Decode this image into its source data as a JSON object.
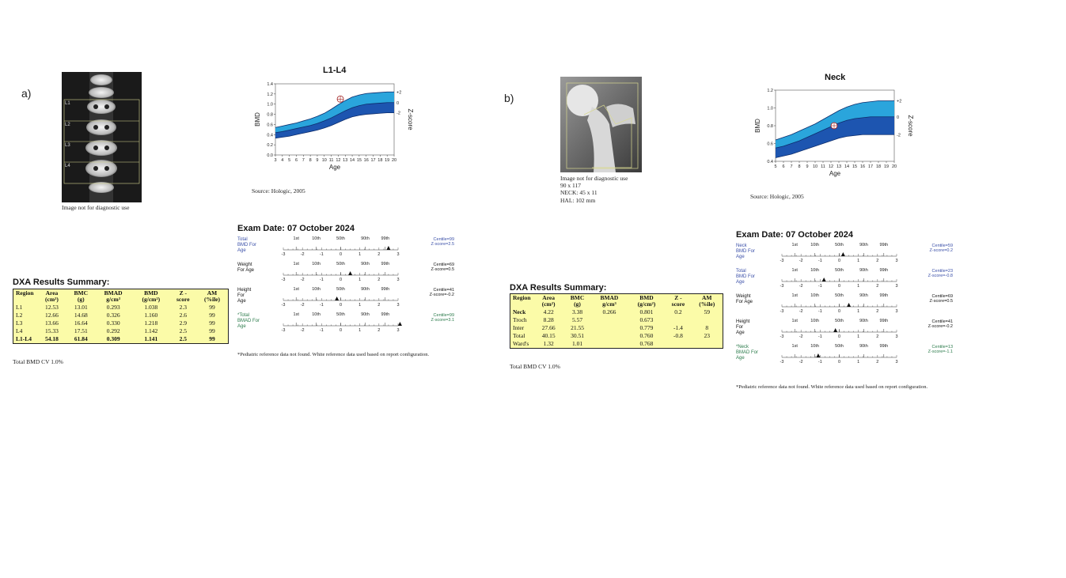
{
  "panel_a": {
    "label": "a)",
    "image_caption": "Image not for diagnostic use",
    "vertebra_labels": [
      "L1",
      "L2",
      "L3",
      "L4"
    ],
    "chart_title": "L1-L4",
    "source": "Source: Hologic, 2005",
    "exam_date": "Exam Date: 07 October 2024",
    "summary_title": "DXA Results Summary:",
    "table_headers": [
      "Region",
      "Area (cm²)",
      "BMC (g)",
      "BMAD g/cm³",
      "BMD (g/cm²)",
      "Z - score",
      "AM (%ile)"
    ],
    "table_rows": [
      [
        "L1",
        "12.53",
        "13.01",
        "0.293",
        "1.038",
        "2.3",
        "99"
      ],
      [
        "L2",
        "12.66",
        "14.68",
        "0.326",
        "1.160",
        "2.6",
        "99"
      ],
      [
        "L3",
        "13.66",
        "16.64",
        "0.330",
        "1.218",
        "2.9",
        "99"
      ],
      [
        "L4",
        "15.33",
        "17.51",
        "0.292",
        "1.142",
        "2.5",
        "99"
      ],
      [
        "L1-L4",
        "54.18",
        "61.84",
        "0.309",
        "1.141",
        "2.5",
        "99"
      ]
    ],
    "footer": "Total BMD CV 1.0%",
    "footnote": "*Pediatric reference data not found. White reference data used based on report configuration.",
    "scales": [
      {
        "label": "Total\nBMD For\nAge",
        "centile": "Centile=99",
        "zscore": "Z-score=2.5",
        "z": 2.5,
        "color": "#3a4fa8"
      },
      {
        "label": "Weight\nFor Age",
        "centile": "Centile=69",
        "zscore": "Z-score=0.5",
        "z": 0.5,
        "color": "#111"
      },
      {
        "label": "Height\nFor\nAge",
        "centile": "Centile=41",
        "zscore": "Z-score=-0.2",
        "z": -0.2,
        "color": "#111"
      },
      {
        "label": "*Total\nBMAD For\nAge",
        "centile": "Centile=99",
        "zscore": "Z-score=3.1",
        "z": 3.1,
        "color": "#2a7a4a"
      }
    ]
  },
  "panel_b": {
    "label": "b)",
    "image_caption": "Image not for diagnostic use",
    "image_info": [
      "90 x 117",
      "NECK: 45 x 11",
      "HAL: 102 mm"
    ],
    "chart_title": "Neck",
    "source": "Source: Hologic, 2005",
    "exam_date": "Exam Date: 07 October 2024",
    "summary_title": "DXA Results Summary:",
    "table_headers": [
      "Region",
      "Area (cm²)",
      "BMC (g)",
      "BMAD g/cm³",
      "BMD (g/cm²)",
      "Z - score",
      "AM (%ile)"
    ],
    "table_rows": [
      [
        "Neck",
        "4.22",
        "3.38",
        "0.266",
        "0.801",
        "0.2",
        "59"
      ],
      [
        "Troch",
        "8.28",
        "5.57",
        "",
        "0.673",
        "",
        ""
      ],
      [
        "Inter",
        "27.66",
        "21.55",
        "",
        "0.779",
        "-1.4",
        "8"
      ],
      [
        "Total",
        "40.15",
        "30.51",
        "",
        "0.760",
        "-0.8",
        "23"
      ],
      [
        "Ward's",
        "1.32",
        "1.01",
        "",
        "0.768",
        "",
        ""
      ]
    ],
    "footer": "Total BMD CV 1.0%",
    "footnote": "*Pediatric reference data not found. White reference data used based on report configuration.",
    "scales": [
      {
        "label": "Neck\nBMD For\nAge",
        "centile": "Centile=59",
        "zscore": "Z-score=0.2",
        "z": 0.2,
        "color": "#3a4fa8"
      },
      {
        "label": "Total\nBMD For\nAge",
        "centile": "Centile=23",
        "zscore": "Z-score=-0.8",
        "z": -0.8,
        "color": "#3a4fa8"
      },
      {
        "label": "Weight\nFor Age",
        "centile": "Centile=69",
        "zscore": "Z-score=0.5",
        "z": 0.5,
        "color": "#111"
      },
      {
        "label": "Height\nFor\nAge",
        "centile": "Centile=41",
        "zscore": "Z-score=-0.2",
        "z": -0.2,
        "color": "#111"
      },
      {
        "label": "*Neck\nBMAD For\nAge",
        "centile": "Centile=13",
        "zscore": "Z-score=-1.1",
        "z": -1.1,
        "color": "#2a7a4a"
      }
    ]
  },
  "scale_common": {
    "percentiles": [
      "1st",
      "10th",
      "50th",
      "90th",
      "99th"
    ],
    "ticks": [
      "-3",
      "-2",
      "-1",
      "0",
      "1",
      "2",
      "3"
    ]
  },
  "chart_data": [
    {
      "type": "area",
      "title": "L1-L4",
      "xlabel": "Age",
      "ylabel": "BMD",
      "y2label": "Z-score",
      "x": [
        3,
        4,
        5,
        6,
        7,
        8,
        9,
        10,
        11,
        12,
        13,
        14,
        15,
        16,
        17,
        18,
        19,
        20
      ],
      "xlim": [
        3,
        20
      ],
      "ylim": [
        0.0,
        1.4
      ],
      "yticks": [
        "0.0",
        "0.2",
        "0.4",
        "0.6",
        "0.8",
        "1.0",
        "1.2",
        "1.4"
      ],
      "y2ticks": [
        "+2",
        "0",
        "-2"
      ],
      "upper": [
        0.54,
        0.57,
        0.6,
        0.63,
        0.67,
        0.71,
        0.76,
        0.82,
        0.9,
        0.99,
        1.07,
        1.14,
        1.18,
        1.21,
        1.22,
        1.23,
        1.24,
        1.24
      ],
      "middle": [
        0.44,
        0.46,
        0.49,
        0.52,
        0.55,
        0.58,
        0.62,
        0.67,
        0.73,
        0.8,
        0.87,
        0.93,
        0.97,
        1.0,
        1.01,
        1.02,
        1.03,
        1.03
      ],
      "lower": [
        0.33,
        0.35,
        0.37,
        0.4,
        0.43,
        0.46,
        0.49,
        0.53,
        0.58,
        0.64,
        0.7,
        0.75,
        0.78,
        0.8,
        0.81,
        0.82,
        0.83,
        0.83
      ],
      "point": {
        "x": 12.3,
        "y": 1.1
      },
      "band_colors": [
        "#2aa5dc",
        "#1d55b0"
      ]
    },
    {
      "type": "area",
      "title": "Neck",
      "xlabel": "Age",
      "ylabel": "BMD",
      "y2label": "Z-score",
      "x": [
        5,
        6,
        7,
        8,
        9,
        10,
        11,
        12,
        13,
        14,
        15,
        16,
        17,
        18,
        19,
        20
      ],
      "xlim": [
        5,
        20
      ],
      "ylim": [
        0.4,
        1.2
      ],
      "yticks": [
        "0.4",
        "0.6",
        "0.8",
        "1.0",
        "1.2"
      ],
      "y2ticks": [
        "+2",
        "0",
        "-2"
      ],
      "upper": [
        0.64,
        0.67,
        0.7,
        0.74,
        0.78,
        0.82,
        0.87,
        0.92,
        0.97,
        1.01,
        1.04,
        1.06,
        1.07,
        1.08,
        1.08,
        1.08
      ],
      "middle": [
        0.55,
        0.57,
        0.6,
        0.63,
        0.67,
        0.71,
        0.75,
        0.79,
        0.83,
        0.86,
        0.88,
        0.89,
        0.9,
        0.9,
        0.9,
        0.9
      ],
      "lower": [
        0.44,
        0.46,
        0.48,
        0.51,
        0.54,
        0.57,
        0.6,
        0.63,
        0.66,
        0.68,
        0.69,
        0.7,
        0.7,
        0.7,
        0.7,
        0.7
      ],
      "point": {
        "x": 12.4,
        "y": 0.8
      },
      "band_colors": [
        "#2aa5dc",
        "#1d55b0"
      ]
    }
  ]
}
